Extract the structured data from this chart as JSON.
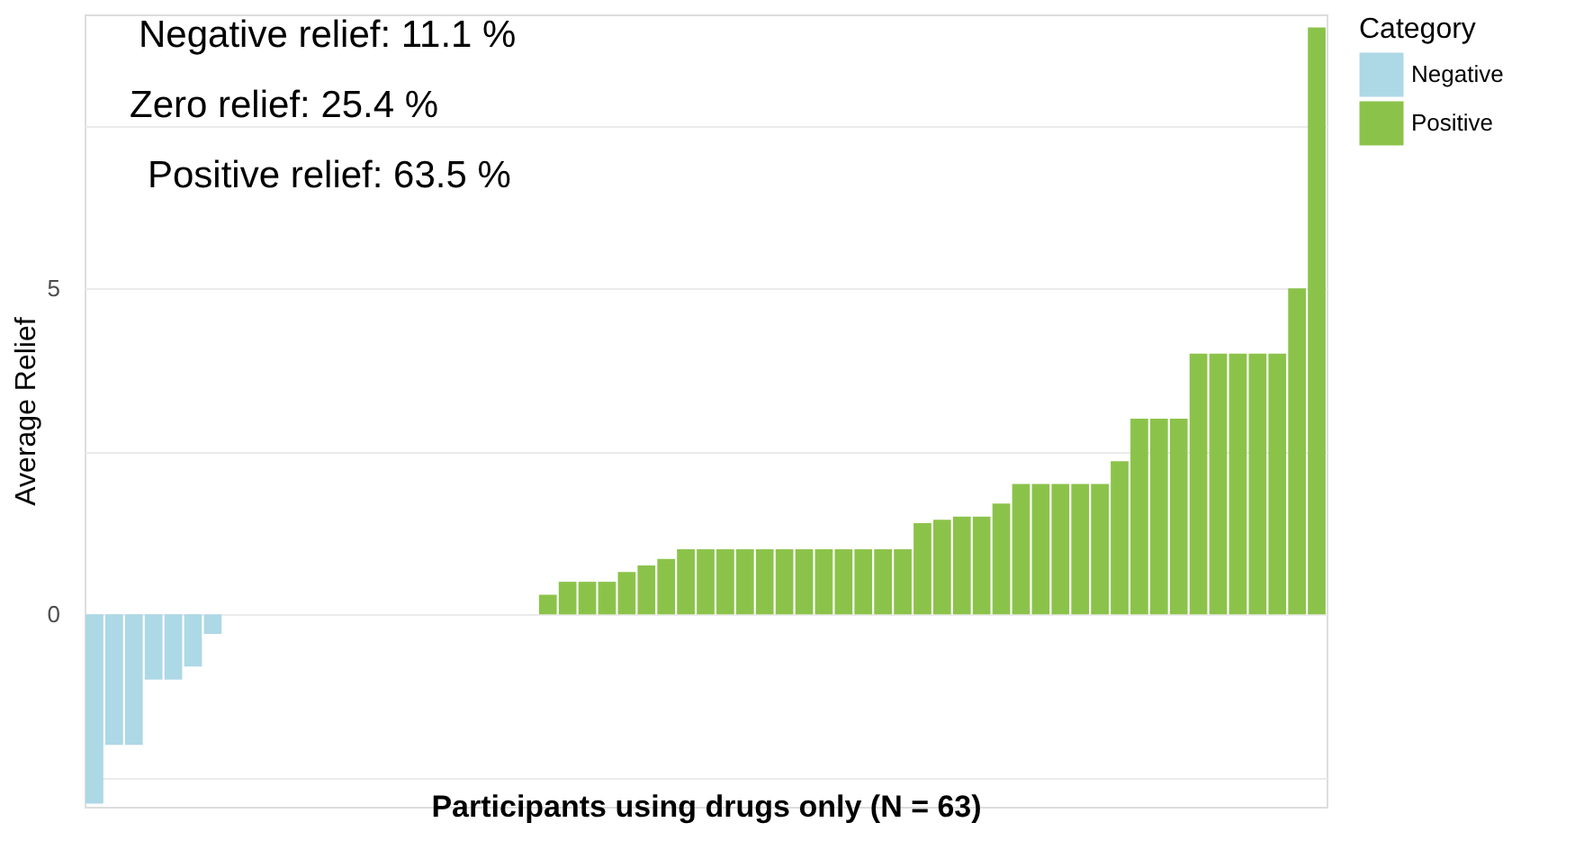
{
  "chart_data": {
    "type": "bar",
    "xlabel": "Participants using drugs only (N = 63)",
    "ylabel": "Average Relief",
    "legend_title": "Category",
    "annotations": [
      "Negative relief: 11.1 %",
      "Zero relief: 25.4 %",
      "Positive relief: 63.5 %"
    ],
    "categories": [
      null,
      null,
      null,
      null,
      null,
      null,
      null,
      null,
      null,
      null,
      null,
      null,
      null,
      null,
      null,
      null,
      null,
      null,
      null,
      null,
      null,
      null,
      null,
      null,
      null,
      null,
      null,
      null,
      null,
      null,
      null,
      null,
      null,
      null,
      null,
      null,
      null,
      null,
      null,
      null,
      null,
      null,
      null,
      null,
      null,
      null,
      null,
      null,
      null,
      null,
      null,
      null,
      null,
      null,
      null,
      null,
      null,
      null,
      null,
      null,
      null,
      null,
      null
    ],
    "series": [
      {
        "name": "Negative",
        "color": "#add8e6",
        "values": [
          -2.9,
          -2,
          -2,
          -1,
          -1,
          -0.8,
          -0.3,
          null,
          null,
          null,
          null,
          null,
          null,
          null,
          null,
          null,
          null,
          null,
          null,
          null,
          null,
          null,
          null,
          null,
          null,
          null,
          null,
          null,
          null,
          null,
          null,
          null,
          null,
          null,
          null,
          null,
          null,
          null,
          null,
          null,
          null,
          null,
          null,
          null,
          null,
          null,
          null,
          null,
          null,
          null,
          null,
          null,
          null,
          null,
          null,
          null,
          null,
          null,
          null,
          null,
          null,
          null,
          null
        ]
      },
      {
        "name": "Positive",
        "color": "#8bc34a",
        "values": [
          null,
          null,
          null,
          null,
          null,
          null,
          null,
          null,
          null,
          null,
          null,
          null,
          null,
          null,
          null,
          null,
          null,
          null,
          null,
          null,
          null,
          null,
          null,
          0.3,
          0.5,
          0.5,
          0.5,
          0.65,
          0.75,
          0.85,
          1,
          1,
          1,
          1,
          1,
          1,
          1,
          1,
          1,
          1,
          1,
          1,
          1.4,
          1.45,
          1.5,
          1.5,
          1.7,
          2,
          2,
          2,
          2,
          2,
          2.35,
          3,
          3,
          3,
          4,
          4,
          4,
          4,
          4,
          5,
          9
        ]
      }
    ],
    "ylim": [
      -2.95,
      9.2
    ],
    "yticks": [
      {
        "value": -2.5,
        "label": null
      },
      0,
      {
        "value": 2.5,
        "label": null
      },
      5,
      {
        "value": 7.5,
        "label": null
      }
    ],
    "grid": "y",
    "legend": "right",
    "tick_labels": "y"
  }
}
